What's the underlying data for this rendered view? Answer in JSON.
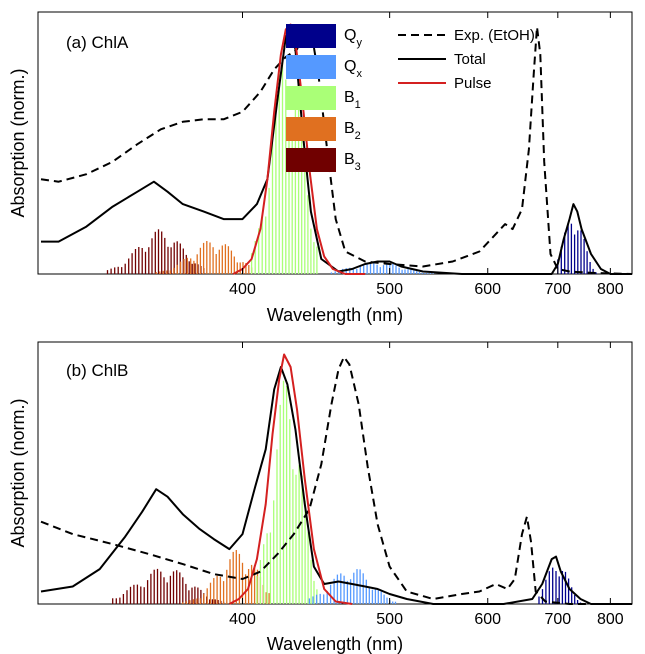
{
  "chart_data": [
    {
      "type": "line",
      "panel_label": "(a) ChlA",
      "xlabel": "Wavelength (nm)",
      "ylabel": "Absorption (norm.)",
      "x_scale": "reciprocal",
      "xlim": [
        313,
        850
      ],
      "ylim": [
        0,
        1.05
      ],
      "x_ticks": [
        400,
        500,
        600,
        700,
        800
      ],
      "legend": {
        "bands": [
          {
            "main": "Q",
            "sub": "y",
            "color": "#00008b"
          },
          {
            "main": "Q",
            "sub": "x",
            "color": "#5599ff"
          },
          {
            "main": "B",
            "sub": "1",
            "color": "#aaff77"
          },
          {
            "main": "B",
            "sub": "2",
            "color": "#e07020"
          },
          {
            "main": "B",
            "sub": "3",
            "color": "#700000"
          }
        ],
        "lines": [
          {
            "label": "Exp. (EtOH)",
            "style": "dashed",
            "color": "#000000"
          },
          {
            "label": "Total",
            "style": "solid",
            "color": "#000000"
          },
          {
            "label": "Pulse",
            "style": "solid",
            "color": "#d42020"
          }
        ]
      },
      "series": [
        {
          "name": "Exp. (EtOH)",
          "style": "dashed",
          "color": "#000000",
          "points": [
            [
              314,
              0.38
            ],
            [
              320,
              0.37
            ],
            [
              330,
              0.4
            ],
            [
              340,
              0.45
            ],
            [
              350,
              0.52
            ],
            [
              360,
              0.58
            ],
            [
              370,
              0.61
            ],
            [
              380,
              0.62
            ],
            [
              390,
              0.62
            ],
            [
              400,
              0.65
            ],
            [
              410,
              0.73
            ],
            [
              418,
              0.82
            ],
            [
              425,
              0.87
            ],
            [
              432,
              0.9
            ],
            [
              437,
              0.99
            ],
            [
              441,
              0.98
            ],
            [
              446,
              0.8
            ],
            [
              452,
              0.5
            ],
            [
              458,
              0.22
            ],
            [
              465,
              0.09
            ],
            [
              480,
              0.05
            ],
            [
              500,
              0.04
            ],
            [
              530,
              0.03
            ],
            [
              560,
              0.05
            ],
            [
              590,
              0.09
            ],
            [
              610,
              0.16
            ],
            [
              622,
              0.2
            ],
            [
              632,
              0.18
            ],
            [
              645,
              0.26
            ],
            [
              655,
              0.5
            ],
            [
              662,
              0.8
            ],
            [
              667,
              0.99
            ],
            [
              672,
              0.88
            ],
            [
              678,
              0.45
            ],
            [
              688,
              0.08
            ],
            [
              700,
              0.02
            ],
            [
              720,
              0.01
            ],
            [
              760,
              0.005
            ],
            [
              850,
              0.0
            ]
          ]
        },
        {
          "name": "Total",
          "style": "solid",
          "color": "#000000",
          "points": [
            [
              314,
              0.13
            ],
            [
              320,
              0.13
            ],
            [
              330,
              0.19
            ],
            [
              340,
              0.27
            ],
            [
              350,
              0.33
            ],
            [
              357,
              0.37
            ],
            [
              363,
              0.33
            ],
            [
              370,
              0.28
            ],
            [
              380,
              0.25
            ],
            [
              390,
              0.22
            ],
            [
              400,
              0.22
            ],
            [
              408,
              0.28
            ],
            [
              414,
              0.38
            ],
            [
              420,
              0.7
            ],
            [
              425,
              0.95
            ],
            [
              428,
              0.99
            ],
            [
              431,
              0.9
            ],
            [
              436,
              0.55
            ],
            [
              441,
              0.25
            ],
            [
              448,
              0.06
            ],
            [
              460,
              0.01
            ],
            [
              470,
              0.02
            ],
            [
              480,
              0.04
            ],
            [
              490,
              0.05
            ],
            [
              500,
              0.05
            ],
            [
              510,
              0.03
            ],
            [
              530,
              0.01
            ],
            [
              570,
              0.0
            ],
            [
              650,
              0.0
            ],
            [
              690,
              0.0
            ],
            [
              700,
              0.04
            ],
            [
              710,
              0.14
            ],
            [
              720,
              0.22
            ],
            [
              727,
              0.28
            ],
            [
              734,
              0.25
            ],
            [
              742,
              0.18
            ],
            [
              760,
              0.08
            ],
            [
              780,
              0.02
            ],
            [
              800,
              0.0
            ],
            [
              850,
              0.0
            ]
          ]
        },
        {
          "name": "Pulse",
          "style": "solid",
          "color": "#d42020",
          "points": [
            [
              395,
              0.0
            ],
            [
              400,
              0.02
            ],
            [
              405,
              0.06
            ],
            [
              410,
              0.18
            ],
            [
              414,
              0.38
            ],
            [
              418,
              0.65
            ],
            [
              422,
              0.88
            ],
            [
              425,
              0.98
            ],
            [
              428,
              1.0
            ],
            [
              431,
              0.93
            ],
            [
              435,
              0.72
            ],
            [
              440,
              0.42
            ],
            [
              445,
              0.18
            ],
            [
              450,
              0.07
            ],
            [
              456,
              0.02
            ],
            [
              465,
              0.0
            ],
            [
              480,
              0.0
            ]
          ]
        }
      ],
      "bands_sticks": [
        {
          "band": "B3",
          "color": "#700000",
          "range": [
            338,
            380
          ],
          "max": 0.18,
          "center": 360
        },
        {
          "band": "B2",
          "color": "#e07020",
          "range": [
            358,
            405
          ],
          "max": 0.14,
          "center": 385
        },
        {
          "band": "B1",
          "color": "#aaff77",
          "range": [
            405,
            445
          ],
          "max": 0.97,
          "center": 426
        },
        {
          "band": "Qx",
          "color": "#5599ff",
          "range": [
            455,
            540
          ],
          "max": 0.05,
          "center": 490
        },
        {
          "band": "Qy",
          "color": "#00008b",
          "range": [
            700,
            770
          ],
          "max": 0.27,
          "center": 728
        }
      ]
    },
    {
      "type": "line",
      "panel_label": "(b) ChlB",
      "xlabel": "Wavelength (nm)",
      "ylabel": "Absorption (norm.)",
      "x_scale": "reciprocal",
      "xlim": [
        313,
        850
      ],
      "ylim": [
        0,
        1.05
      ],
      "x_ticks": [
        400,
        500,
        600,
        700,
        800
      ],
      "series": [
        {
          "name": "Exp. (EtOH)",
          "style": "dashed",
          "color": "#000000",
          "points": [
            [
              314,
              0.33
            ],
            [
              325,
              0.28
            ],
            [
              340,
              0.24
            ],
            [
              355,
              0.2
            ],
            [
              370,
              0.16
            ],
            [
              385,
              0.12
            ],
            [
              400,
              0.1
            ],
            [
              410,
              0.13
            ],
            [
              420,
              0.2
            ],
            [
              430,
              0.28
            ],
            [
              440,
              0.38
            ],
            [
              448,
              0.56
            ],
            [
              455,
              0.8
            ],
            [
              460,
              0.94
            ],
            [
              464,
              0.99
            ],
            [
              468,
              0.96
            ],
            [
              475,
              0.8
            ],
            [
              482,
              0.55
            ],
            [
              490,
              0.32
            ],
            [
              500,
              0.15
            ],
            [
              515,
              0.05
            ],
            [
              540,
              0.02
            ],
            [
              570,
              0.04
            ],
            [
              590,
              0.05
            ],
            [
              610,
              0.08
            ],
            [
              625,
              0.06
            ],
            [
              635,
              0.1
            ],
            [
              645,
              0.28
            ],
            [
              652,
              0.35
            ],
            [
              658,
              0.25
            ],
            [
              665,
              0.05
            ],
            [
              680,
              0.01
            ],
            [
              720,
              0.0
            ],
            [
              850,
              0.0
            ]
          ]
        },
        {
          "name": "Total",
          "style": "solid",
          "color": "#000000",
          "points": [
            [
              314,
              0.05
            ],
            [
              325,
              0.07
            ],
            [
              335,
              0.14
            ],
            [
              345,
              0.27
            ],
            [
              352,
              0.37
            ],
            [
              358,
              0.46
            ],
            [
              363,
              0.43
            ],
            [
              370,
              0.36
            ],
            [
              378,
              0.3
            ],
            [
              385,
              0.26
            ],
            [
              393,
              0.22
            ],
            [
              400,
              0.28
            ],
            [
              407,
              0.47
            ],
            [
              413,
              0.62
            ],
            [
              418,
              0.86
            ],
            [
              422,
              0.95
            ],
            [
              426,
              0.88
            ],
            [
              431,
              0.7
            ],
            [
              437,
              0.4
            ],
            [
              443,
              0.15
            ],
            [
              450,
              0.08
            ],
            [
              460,
              0.09
            ],
            [
              470,
              0.08
            ],
            [
              480,
              0.07
            ],
            [
              490,
              0.06
            ],
            [
              500,
              0.04
            ],
            [
              515,
              0.02
            ],
            [
              540,
              0.0
            ],
            [
              620,
              0.0
            ],
            [
              660,
              0.02
            ],
            [
              675,
              0.08
            ],
            [
              690,
              0.18
            ],
            [
              697,
              0.19
            ],
            [
              705,
              0.13
            ],
            [
              720,
              0.06
            ],
            [
              740,
              0.02
            ],
            [
              760,
              0.0
            ],
            [
              850,
              0.0
            ]
          ]
        },
        {
          "name": "Pulse",
          "style": "solid",
          "color": "#d42020",
          "points": [
            [
              393,
              0.0
            ],
            [
              398,
              0.02
            ],
            [
              403,
              0.06
            ],
            [
              408,
              0.18
            ],
            [
              413,
              0.4
            ],
            [
              417,
              0.68
            ],
            [
              421,
              0.9
            ],
            [
              424,
              1.0
            ],
            [
              428,
              0.95
            ],
            [
              432,
              0.78
            ],
            [
              437,
              0.5
            ],
            [
              443,
              0.22
            ],
            [
              450,
              0.06
            ],
            [
              458,
              0.01
            ],
            [
              470,
              0.0
            ]
          ]
        }
      ],
      "bands_sticks": [
        {
          "band": "B3",
          "color": "#700000",
          "range": [
            340,
            390
          ],
          "max": 0.15,
          "center": 362
        },
        {
          "band": "B2",
          "color": "#e07020",
          "range": [
            370,
            415
          ],
          "max": 0.22,
          "center": 398
        },
        {
          "band": "B1",
          "color": "#aaff77",
          "range": [
            408,
            445
          ],
          "max": 0.93,
          "center": 426
        },
        {
          "band": "Qx",
          "color": "#5599ff",
          "range": [
            440,
            505
          ],
          "max": 0.15,
          "center": 470
        },
        {
          "band": "Qy",
          "color": "#00008b",
          "range": [
            670,
            740
          ],
          "max": 0.19,
          "center": 700
        }
      ]
    }
  ]
}
